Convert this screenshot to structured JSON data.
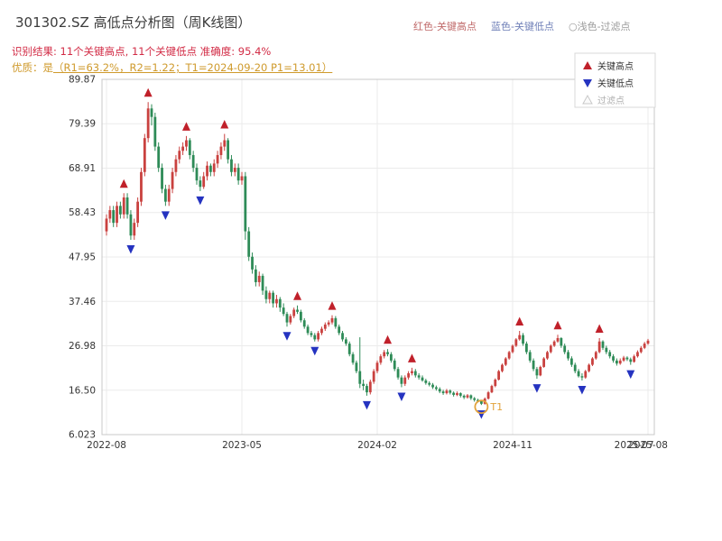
{
  "header": {
    "title": "301302.SZ 高低点分析图（周K线图）",
    "legend_top": [
      {
        "label": "红色-关键高点",
        "color": "#c06a6a"
      },
      {
        "label": "蓝色-关键低点",
        "color": "#7181b8"
      },
      {
        "label": "○浅色-过滤点",
        "color": "#9a9a9a"
      }
    ],
    "result_line": "识别结果: 11个关键高点, 11个关键低点  准确度: 95.4%",
    "quality_prefix": "优质：是",
    "quality_detail": "（R1=63.2%，R2=1.22；T1=2024-09-20 P1=13.01）"
  },
  "chart_data": {
    "type": "candlestick",
    "title": "301302.SZ 高低点分析图（周K线图）",
    "y_range": [
      6.023,
      89.87
    ],
    "y_ticks": [
      "89.87",
      "79.39",
      "68.91",
      "58.43",
      "47.95",
      "37.46",
      "26.98",
      "16.50",
      "6.023"
    ],
    "x_ticks": [
      {
        "label": "2022-08",
        "pos": 0,
        "grid": true
      },
      {
        "label": "2023-05",
        "pos": 39,
        "grid": true
      },
      {
        "label": "2024-02",
        "pos": 78,
        "grid": true
      },
      {
        "label": "2024-11",
        "pos": 117,
        "grid": true
      },
      {
        "label": "2025-07",
        "pos": 152,
        "grid": false
      },
      {
        "label": "2025-08",
        "pos": 156,
        "grid": true
      }
    ],
    "up_color": "#c9413f",
    "down_color": "#2e8b57",
    "high_marker_color": "#c0202a",
    "low_marker_color": "#2533c0",
    "grid_color": "#ebebeb",
    "border_color": "#c8c8c8",
    "candles": [
      [
        54,
        58,
        53,
        57
      ],
      [
        57,
        60,
        56,
        59
      ],
      [
        59,
        60,
        55,
        56
      ],
      [
        56,
        61,
        55,
        60
      ],
      [
        60,
        61,
        57,
        58
      ],
      [
        58,
        63,
        57,
        62
      ],
      [
        62,
        63,
        57,
        58
      ],
      [
        58,
        59,
        52,
        53
      ],
      [
        53,
        57,
        52,
        56
      ],
      [
        56,
        62,
        55,
        61
      ],
      [
        61,
        69,
        60,
        68
      ],
      [
        68,
        77,
        67,
        76
      ],
      [
        76,
        84.5,
        75,
        83
      ],
      [
        83,
        84,
        79,
        81
      ],
      [
        81,
        82,
        73,
        74
      ],
      [
        74,
        75,
        68,
        69
      ],
      [
        69,
        70,
        63,
        64
      ],
      [
        64,
        65,
        60,
        61
      ],
      [
        61,
        65,
        60,
        64
      ],
      [
        64,
        69,
        63,
        68
      ],
      [
        68,
        72,
        67,
        71
      ],
      [
        71,
        74,
        70,
        73
      ],
      [
        73,
        75,
        72,
        74
      ],
      [
        74,
        76.5,
        73,
        75.5
      ],
      [
        75.5,
        76,
        71,
        72
      ],
      [
        72,
        73,
        68,
        69
      ],
      [
        69,
        70,
        65,
        66
      ],
      [
        66,
        67,
        63.5,
        64.5
      ],
      [
        64.5,
        68,
        64,
        67
      ],
      [
        67,
        70.5,
        66,
        69.5
      ],
      [
        69.5,
        70,
        67,
        68
      ],
      [
        68,
        71,
        67,
        70
      ],
      [
        70,
        73,
        69,
        72
      ],
      [
        72,
        75,
        71,
        74
      ],
      [
        74,
        77,
        73,
        75.5
      ],
      [
        75.5,
        76,
        70,
        71
      ],
      [
        71,
        72,
        67,
        68
      ],
      [
        68,
        70,
        67,
        69
      ],
      [
        69,
        70,
        65,
        66
      ],
      [
        66,
        68,
        65,
        67
      ],
      [
        67,
        68,
        52,
        54
      ],
      [
        54,
        55,
        47,
        48
      ],
      [
        48,
        49,
        44,
        45
      ],
      [
        45,
        46,
        41,
        42
      ],
      [
        42,
        44.5,
        41,
        43.5
      ],
      [
        43.5,
        44,
        39,
        40
      ],
      [
        40,
        41,
        37,
        38
      ],
      [
        38,
        40,
        37,
        39.5
      ],
      [
        39.5,
        40,
        36,
        37
      ],
      [
        37,
        39,
        36,
        38
      ],
      [
        38,
        38.5,
        35,
        36
      ],
      [
        36,
        37,
        34,
        34.5
      ],
      [
        34.5,
        35,
        31.5,
        32.5
      ],
      [
        32.5,
        34.5,
        32,
        34
      ],
      [
        34,
        36,
        33.5,
        35.5
      ],
      [
        35.5,
        36.5,
        34.5,
        35
      ],
      [
        35,
        35.5,
        32.5,
        33
      ],
      [
        33,
        33.5,
        31,
        31.5
      ],
      [
        31.5,
        32,
        29.5,
        30
      ],
      [
        30,
        30.5,
        29,
        29.5
      ],
      [
        29.5,
        30,
        28,
        28.5
      ],
      [
        28.5,
        30.5,
        28,
        30
      ],
      [
        30,
        31.5,
        29.5,
        31
      ],
      [
        31,
        32.5,
        30.5,
        32
      ],
      [
        32,
        33,
        31.5,
        32.5
      ],
      [
        32.5,
        34.2,
        32,
        33.5
      ],
      [
        33.5,
        34,
        31,
        31.5
      ],
      [
        31.5,
        32,
        29.5,
        30
      ],
      [
        30,
        30.5,
        28,
        28.5
      ],
      [
        28.5,
        29,
        27,
        27.5
      ],
      [
        27.5,
        28,
        24.5,
        25
      ],
      [
        25,
        25.5,
        22.5,
        23
      ],
      [
        23,
        23.5,
        20.5,
        21
      ],
      [
        21,
        29,
        17,
        18
      ],
      [
        18,
        19,
        16.5,
        17.5
      ],
      [
        17.5,
        18,
        15.2,
        16
      ],
      [
        16,
        19,
        15.5,
        18.5
      ],
      [
        18.5,
        21.5,
        18,
        21
      ],
      [
        21,
        23.5,
        20.5,
        23
      ],
      [
        23,
        25,
        22.5,
        24.5
      ],
      [
        24.5,
        26,
        24,
        25.5
      ],
      [
        25.5,
        26.2,
        24.5,
        25
      ],
      [
        25,
        25.5,
        23,
        23.5
      ],
      [
        23.5,
        24,
        21,
        21.5
      ],
      [
        21.5,
        22,
        19,
        19.5
      ],
      [
        19.5,
        20,
        17.2,
        18
      ],
      [
        18,
        20,
        17.5,
        19.5
      ],
      [
        19.5,
        21,
        19,
        20.5
      ],
      [
        20.5,
        21.8,
        20,
        21
      ],
      [
        21,
        21.5,
        19.5,
        20
      ],
      [
        20,
        20.5,
        19,
        19.5
      ],
      [
        19.5,
        20,
        18.5,
        18.8
      ],
      [
        18.8,
        19.2,
        17.8,
        18.2
      ],
      [
        18.2,
        18.6,
        17.4,
        17.8
      ],
      [
        17.8,
        18.2,
        16.8,
        17.2
      ],
      [
        17.2,
        17.6,
        16.4,
        16.8
      ],
      [
        16.8,
        17.2,
        15.8,
        16.2
      ],
      [
        16.2,
        16.6,
        15.4,
        15.8
      ],
      [
        15.8,
        16.8,
        15.5,
        16.4
      ],
      [
        16.4,
        16.7,
        15.5,
        15.9
      ],
      [
        15.9,
        16.2,
        15,
        15.4
      ],
      [
        15.4,
        16.2,
        15.1,
        15.8
      ],
      [
        15.8,
        16,
        14.8,
        15.2
      ],
      [
        15.2,
        15.5,
        14.4,
        14.8
      ],
      [
        14.8,
        15.6,
        14.5,
        15.3
      ],
      [
        15.3,
        15.5,
        14.2,
        14.6
      ],
      [
        14.6,
        14.9,
        13.8,
        14.2
      ],
      [
        14.2,
        14.5,
        13.6,
        13.9
      ],
      [
        13.9,
        14.2,
        13.01,
        13.3
      ],
      [
        13.3,
        14.8,
        13.1,
        14.5
      ],
      [
        14.5,
        16.3,
        14.3,
        16
      ],
      [
        16,
        17.8,
        15.8,
        17.5
      ],
      [
        17.5,
        19.3,
        17.2,
        19
      ],
      [
        19,
        21.3,
        18.8,
        21
      ],
      [
        21,
        22.8,
        20.7,
        22.5
      ],
      [
        22.5,
        24.3,
        22.2,
        24
      ],
      [
        24,
        25.8,
        23.7,
        25.5
      ],
      [
        25.5,
        27.3,
        25.2,
        27
      ],
      [
        27,
        28.8,
        26.7,
        28.5
      ],
      [
        28.5,
        30.5,
        28.2,
        29.5
      ],
      [
        29.5,
        30,
        27,
        27.5
      ],
      [
        27.5,
        28,
        25,
        25.5
      ],
      [
        25.5,
        26,
        23,
        23.5
      ],
      [
        23.5,
        24,
        21,
        21.5
      ],
      [
        21.5,
        22,
        19.2,
        20
      ],
      [
        20,
        22.3,
        19.8,
        22
      ],
      [
        22,
        24.3,
        21.8,
        24
      ],
      [
        24,
        25.8,
        23.7,
        25.5
      ],
      [
        25.5,
        27.3,
        25.2,
        27
      ],
      [
        27,
        28.3,
        26.7,
        28
      ],
      [
        28,
        29.6,
        27.7,
        28.8
      ],
      [
        28.8,
        29,
        26.5,
        27
      ],
      [
        27,
        27.5,
        25,
        25.5
      ],
      [
        25.5,
        26,
        23.5,
        24
      ],
      [
        24,
        24.5,
        22,
        22.5
      ],
      [
        22.5,
        23,
        20.5,
        21
      ],
      [
        21,
        21.5,
        19.5,
        19.8
      ],
      [
        19.8,
        20.5,
        18.8,
        19.5
      ],
      [
        19.5,
        21.3,
        19.2,
        21
      ],
      [
        21,
        22.8,
        20.7,
        22.5
      ],
      [
        22.5,
        24.3,
        22.2,
        24
      ],
      [
        24,
        25.8,
        23.7,
        25.5
      ],
      [
        25.5,
        28.8,
        25.2,
        28
      ],
      [
        28,
        28.3,
        26,
        26.5
      ],
      [
        26.5,
        27,
        25,
        25.5
      ],
      [
        25.5,
        26,
        24,
        24.5
      ],
      [
        24.5,
        25,
        23,
        23.5
      ],
      [
        23.5,
        24,
        22.3,
        22.8
      ],
      [
        22.8,
        24,
        22.5,
        23.5
      ],
      [
        23.5,
        24.6,
        23.2,
        24.2
      ],
      [
        24.2,
        24.5,
        23.4,
        23.8
      ],
      [
        23.8,
        24.2,
        22.5,
        23.2
      ],
      [
        23.2,
        24.9,
        23,
        24.5
      ],
      [
        24.5,
        25.9,
        24.2,
        25.5
      ],
      [
        25.5,
        26.9,
        25.2,
        26.5
      ],
      [
        26.5,
        27.9,
        26.2,
        27.5
      ],
      [
        27.5,
        28.6,
        27.2,
        28.2
      ]
    ],
    "key_highs": [
      5,
      12,
      23,
      34,
      55,
      65,
      81,
      88,
      119,
      130,
      142
    ],
    "key_lows": [
      7,
      17,
      27,
      52,
      60,
      75,
      85,
      108,
      124,
      137,
      151
    ],
    "t1": {
      "week": 108,
      "price": 13.01,
      "label": "T1",
      "color": "#e2a23b"
    },
    "legend": [
      {
        "label": "关键高点",
        "marker": "up",
        "color": "#c0202a",
        "label_color": "#333333"
      },
      {
        "label": "关键低点",
        "marker": "down",
        "color": "#2533c0",
        "label_color": "#333333"
      },
      {
        "label": "过滤点",
        "marker": "up-outline",
        "color": "#c8c8c8",
        "label_color": "#b0b0b0"
      }
    ]
  }
}
